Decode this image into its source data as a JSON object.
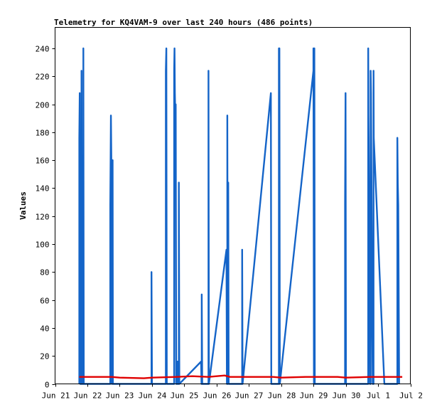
{
  "chart_data": {
    "type": "line",
    "title": "Telemetry for KQ4VAM-9 over last 240 hours (486 points)",
    "xlabel": "",
    "ylabel": "Values",
    "ylim": [
      0,
      255
    ],
    "xlim": [
      "2021-06-21 00:00",
      "2021-07-02 00:00"
    ],
    "y_ticks": [
      0,
      20,
      40,
      60,
      80,
      100,
      120,
      140,
      160,
      180,
      200,
      220,
      240
    ],
    "x_ticks": [
      {
        "t": "2021-06-21 00:00",
        "label": "Jun 21"
      },
      {
        "t": "2021-06-22 00:00",
        "label": "Jun 22"
      },
      {
        "t": "2021-06-23 00:00",
        "label": "Jun 23"
      },
      {
        "t": "2021-06-24 00:00",
        "label": "Jun 24"
      },
      {
        "t": "2021-06-25 00:00",
        "label": "Jun 25"
      },
      {
        "t": "2021-06-26 00:00",
        "label": "Jun 26"
      },
      {
        "t": "2021-06-27 00:00",
        "label": "Jun 27"
      },
      {
        "t": "2021-06-28 00:00",
        "label": "Jun 28"
      },
      {
        "t": "2021-06-29 00:00",
        "label": "Jun 29"
      },
      {
        "t": "2021-06-30 00:00",
        "label": "Jun 30"
      },
      {
        "t": "2021-07-01 00:00",
        "label": "Jul 1"
      },
      {
        "t": "2021-07-02 00:00",
        "label": "Jul 2"
      }
    ],
    "grid": false,
    "legend": "none",
    "series": [
      {
        "color": "#1464c8",
        "points": [
          [
            "2021-06-21 18:00",
            0
          ],
          [
            "2021-06-21 18:00",
            176
          ],
          [
            "2021-06-21 18:20",
            208
          ],
          [
            "2021-06-21 18:40",
            0
          ],
          [
            "2021-06-21 19:40",
            0
          ],
          [
            "2021-06-21 19:40",
            224
          ],
          [
            "2021-06-21 20:00",
            0
          ],
          [
            "2021-06-21 21:00",
            0
          ],
          [
            "2021-06-21 21:00",
            240
          ],
          [
            "2021-06-21 21:20",
            0
          ],
          [
            "2021-06-22 17:00",
            0
          ],
          [
            "2021-06-22 17:00",
            128
          ],
          [
            "2021-06-22 17:30",
            192
          ],
          [
            "2021-06-22 18:00",
            144
          ],
          [
            "2021-06-22 18:10",
            0
          ],
          [
            "2021-06-22 18:30",
            0
          ],
          [
            "2021-06-22 18:30",
            144
          ],
          [
            "2021-06-22 18:45",
            160
          ],
          [
            "2021-06-22 19:00",
            0
          ],
          [
            "2021-06-23 23:40",
            0
          ],
          [
            "2021-06-23 23:40",
            80
          ],
          [
            "2021-06-24 00:00",
            0
          ],
          [
            "2021-06-24 10:20",
            0
          ],
          [
            "2021-06-24 10:20",
            224
          ],
          [
            "2021-06-24 10:40",
            240
          ],
          [
            "2021-06-24 11:00",
            0
          ],
          [
            "2021-06-24 16:30",
            0
          ],
          [
            "2021-06-24 16:30",
            224
          ],
          [
            "2021-06-24 16:45",
            240
          ],
          [
            "2021-06-24 17:00",
            208
          ],
          [
            "2021-06-24 17:20",
            192
          ],
          [
            "2021-06-24 17:40",
            200
          ],
          [
            "2021-06-24 18:00",
            0
          ],
          [
            "2021-06-24 19:00",
            0
          ],
          [
            "2021-06-24 19:00",
            16
          ],
          [
            "2021-06-24 19:20",
            0
          ],
          [
            "2021-06-24 20:00",
            0
          ],
          [
            "2021-06-24 20:00",
            144
          ],
          [
            "2021-06-24 20:20",
            0
          ],
          [
            "2021-06-25 12:30",
            16
          ],
          [
            "2021-06-25 12:50",
            0
          ],
          [
            "2021-06-25 13:00",
            0
          ],
          [
            "2021-06-25 13:00",
            64
          ],
          [
            "2021-06-25 13:20",
            0
          ],
          [
            "2021-06-25 18:00",
            0
          ],
          [
            "2021-06-25 18:00",
            224
          ],
          [
            "2021-06-25 18:20",
            0
          ],
          [
            "2021-06-26 07:20",
            96
          ],
          [
            "2021-06-26 07:40",
            0
          ],
          [
            "2021-06-26 08:00",
            0
          ],
          [
            "2021-06-26 08:00",
            192
          ],
          [
            "2021-06-26 08:20",
            0
          ],
          [
            "2021-06-26 08:40",
            144
          ],
          [
            "2021-06-26 09:00",
            0
          ],
          [
            "2021-06-26 19:00",
            0
          ],
          [
            "2021-06-26 19:00",
            96
          ],
          [
            "2021-06-26 19:20",
            0
          ],
          [
            "2021-06-27 16:20",
            208
          ],
          [
            "2021-06-27 16:40",
            0
          ],
          [
            "2021-06-27 22:20",
            0
          ],
          [
            "2021-06-27 22:20",
            240
          ],
          [
            "2021-06-27 22:40",
            240
          ],
          [
            "2021-06-27 23:00",
            0
          ],
          [
            "2021-06-29 00:00",
            224
          ],
          [
            "2021-06-29 00:00",
            240
          ],
          [
            "2021-06-29 00:20",
            0
          ],
          [
            "2021-06-29 00:40",
            240
          ],
          [
            "2021-06-29 01:00",
            0
          ],
          [
            "2021-06-29 23:30",
            0
          ],
          [
            "2021-06-29 23:30",
            128
          ],
          [
            "2021-06-29 23:50",
            208
          ],
          [
            "2021-06-30 00:10",
            0
          ],
          [
            "2021-06-30 16:40",
            0
          ],
          [
            "2021-06-30 16:40",
            240
          ],
          [
            "2021-06-30 16:50",
            192
          ],
          [
            "2021-06-30 17:00",
            176
          ],
          [
            "2021-06-30 17:20",
            128
          ],
          [
            "2021-06-30 17:40",
            96
          ],
          [
            "2021-06-30 18:00",
            0
          ],
          [
            "2021-06-30 18:30",
            0
          ],
          [
            "2021-06-30 18:30",
            224
          ],
          [
            "2021-06-30 18:45",
            208
          ],
          [
            "2021-06-30 19:00",
            160
          ],
          [
            "2021-06-30 19:20",
            112
          ],
          [
            "2021-06-30 19:40",
            48
          ],
          [
            "2021-06-30 20:00",
            0
          ],
          [
            "2021-06-30 20:40",
            0
          ],
          [
            "2021-06-30 20:40",
            224
          ],
          [
            "2021-06-30 20:50",
            176
          ],
          [
            "2021-07-01 04:40",
            0
          ],
          [
            "2021-07-01 14:20",
            0
          ],
          [
            "2021-07-01 14:20",
            176
          ],
          [
            "2021-07-01 14:40",
            144
          ],
          [
            "2021-07-01 15:00",
            128
          ],
          [
            "2021-07-01 15:20",
            64
          ],
          [
            "2021-07-01 15:40",
            0
          ]
        ]
      },
      {
        "color": "#e00000",
        "points": [
          [
            "2021-06-21 18:00",
            5
          ],
          [
            "2021-06-22 18:00",
            5
          ],
          [
            "2021-06-23 00:00",
            4.5
          ],
          [
            "2021-06-23 18:00",
            4
          ],
          [
            "2021-06-24 00:00",
            4.5
          ],
          [
            "2021-06-24 18:00",
            5
          ],
          [
            "2021-06-25 06:00",
            5.5
          ],
          [
            "2021-06-25 18:00",
            5
          ],
          [
            "2021-06-26 06:00",
            6
          ],
          [
            "2021-06-26 10:00",
            5
          ],
          [
            "2021-06-26 18:00",
            5
          ],
          [
            "2021-06-27 18:00",
            5
          ],
          [
            "2021-06-28 00:00",
            4.5
          ],
          [
            "2021-06-28 18:00",
            5
          ],
          [
            "2021-06-29 18:00",
            5
          ],
          [
            "2021-06-30 00:00",
            4.5
          ],
          [
            "2021-06-30 18:00",
            5
          ],
          [
            "2021-07-01 18:00",
            5
          ]
        ]
      }
    ]
  }
}
